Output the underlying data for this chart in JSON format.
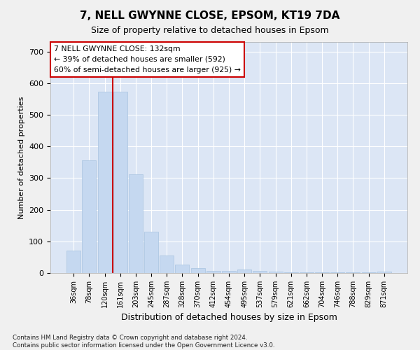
{
  "title": "7, NELL GWYNNE CLOSE, EPSOM, KT19 7DA",
  "subtitle": "Size of property relative to detached houses in Epsom",
  "xlabel": "Distribution of detached houses by size in Epsom",
  "ylabel": "Number of detached properties",
  "bar_labels": [
    "36sqm",
    "78sqm",
    "120sqm",
    "161sqm",
    "203sqm",
    "245sqm",
    "287sqm",
    "328sqm",
    "370sqm",
    "412sqm",
    "454sqm",
    "495sqm",
    "537sqm",
    "579sqm",
    "621sqm",
    "662sqm",
    "704sqm",
    "746sqm",
    "788sqm",
    "829sqm",
    "871sqm"
  ],
  "bar_values": [
    70,
    357,
    572,
    572,
    313,
    130,
    56,
    26,
    15,
    7,
    7,
    10,
    7,
    5,
    3,
    3,
    3,
    2,
    2,
    2,
    5
  ],
  "bar_color": "#c5d8f0",
  "bar_edge_color": "#a8c4e0",
  "background_color": "#dce6f5",
  "grid_color": "#ffffff",
  "red_line_x": 2.5,
  "annotation_text": "7 NELL GWYNNE CLOSE: 132sqm\n← 39% of detached houses are smaller (592)\n60% of semi-detached houses are larger (925) →",
  "annotation_box_color": "#ffffff",
  "annotation_box_edge": "#cc0000",
  "ylim": [
    0,
    730
  ],
  "yticks": [
    0,
    100,
    200,
    300,
    400,
    500,
    600,
    700
  ],
  "footer": "Contains HM Land Registry data © Crown copyright and database right 2024.\nContains public sector information licensed under the Open Government Licence v3.0."
}
